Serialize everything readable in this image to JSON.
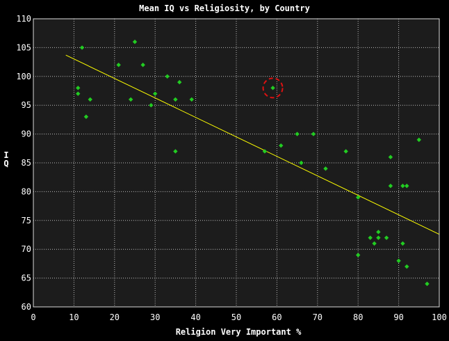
{
  "chart_data": {
    "type": "scatter",
    "title": "Mean IQ vs Religiosity, by Country",
    "xlabel": "Religion Very Important %",
    "ylabel": "IQ",
    "xlim": [
      0,
      100
    ],
    "ylim": [
      60,
      110
    ],
    "xticks": [
      0,
      10,
      20,
      30,
      40,
      50,
      60,
      70,
      80,
      90,
      100
    ],
    "yticks": [
      60,
      65,
      70,
      75,
      80,
      85,
      90,
      95,
      100,
      105,
      110
    ],
    "grid": true,
    "background": "#1c1c1c",
    "outer_background": "#000000",
    "grid_color": "#bbbbbb",
    "point_color": "#22cc22",
    "trend_color": "#ffff00",
    "highlight_color": "#dd1111",
    "points": [
      {
        "x": 12,
        "y": 105
      },
      {
        "x": 11,
        "y": 98
      },
      {
        "x": 11,
        "y": 97
      },
      {
        "x": 14,
        "y": 96
      },
      {
        "x": 13,
        "y": 93
      },
      {
        "x": 21,
        "y": 102
      },
      {
        "x": 25,
        "y": 106
      },
      {
        "x": 27,
        "y": 102
      },
      {
        "x": 24,
        "y": 96
      },
      {
        "x": 29,
        "y": 95
      },
      {
        "x": 30,
        "y": 97
      },
      {
        "x": 33,
        "y": 100
      },
      {
        "x": 36,
        "y": 99
      },
      {
        "x": 35,
        "y": 96
      },
      {
        "x": 39,
        "y": 96
      },
      {
        "x": 35,
        "y": 87
      },
      {
        "x": 57,
        "y": 87
      },
      {
        "x": 59,
        "y": 98
      },
      {
        "x": 61,
        "y": 88
      },
      {
        "x": 65,
        "y": 90
      },
      {
        "x": 66,
        "y": 85
      },
      {
        "x": 69,
        "y": 90
      },
      {
        "x": 72,
        "y": 84
      },
      {
        "x": 77,
        "y": 87
      },
      {
        "x": 80,
        "y": 79
      },
      {
        "x": 80,
        "y": 69
      },
      {
        "x": 83,
        "y": 72
      },
      {
        "x": 84,
        "y": 71
      },
      {
        "x": 85,
        "y": 73
      },
      {
        "x": 85,
        "y": 72
      },
      {
        "x": 87,
        "y": 72
      },
      {
        "x": 88,
        "y": 86
      },
      {
        "x": 88,
        "y": 81
      },
      {
        "x": 90,
        "y": 68
      },
      {
        "x": 91,
        "y": 81
      },
      {
        "x": 91,
        "y": 71
      },
      {
        "x": 92,
        "y": 81
      },
      {
        "x": 92,
        "y": 67
      },
      {
        "x": 95,
        "y": 89
      },
      {
        "x": 97,
        "y": 64
      }
    ],
    "trendline": {
      "x": [
        8,
        100
      ],
      "y": [
        103.7,
        72.6
      ]
    },
    "highlight": {
      "x": 59,
      "y": 98
    }
  }
}
